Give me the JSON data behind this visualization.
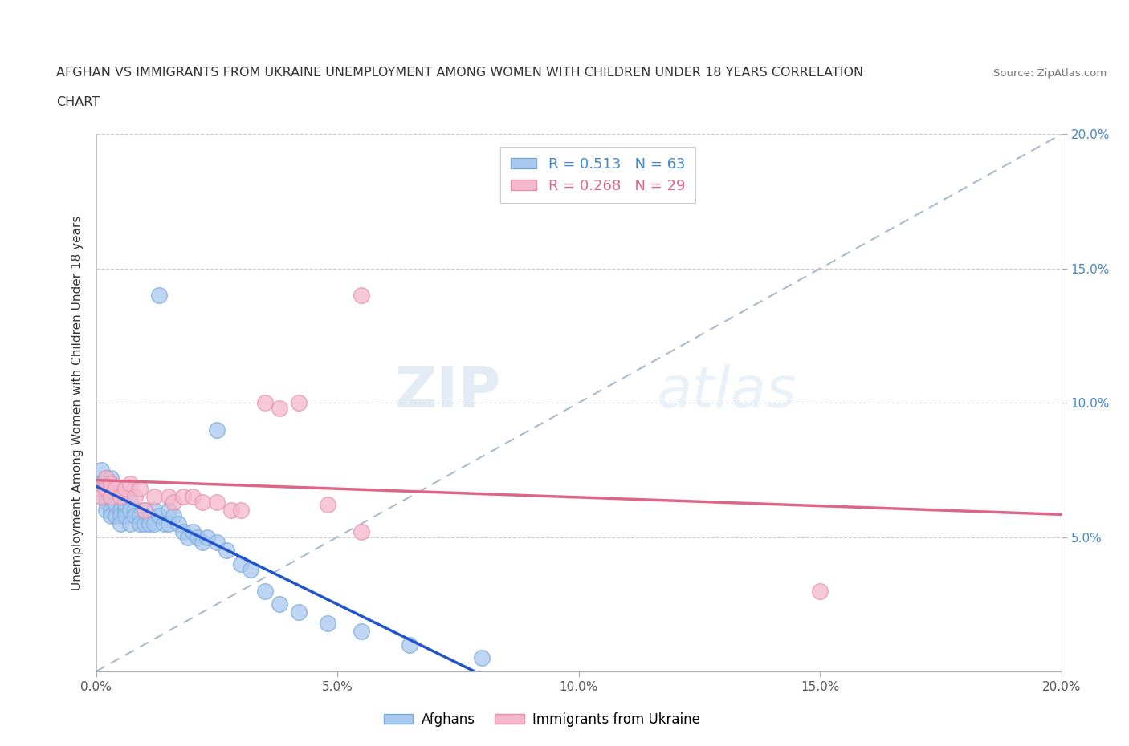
{
  "title_line1": "AFGHAN VS IMMIGRANTS FROM UKRAINE UNEMPLOYMENT AMONG WOMEN WITH CHILDREN UNDER 18 YEARS CORRELATION",
  "title_line2": "CHART",
  "source": "Source: ZipAtlas.com",
  "ylabel": "Unemployment Among Women with Children Under 18 years",
  "xlim": [
    0.0,
    0.2
  ],
  "ylim": [
    0.0,
    0.2
  ],
  "xticks": [
    0.0,
    0.05,
    0.1,
    0.15,
    0.2
  ],
  "yticks": [
    0.05,
    0.1,
    0.15,
    0.2
  ],
  "xticklabels": [
    "0.0%",
    "5.0%",
    "10.0%",
    "15.0%",
    "20.0%"
  ],
  "yticklabels": [
    "5.0%",
    "10.0%",
    "15.0%",
    "20.0%"
  ],
  "afghan_color": "#A8C8F0",
  "afghan_edge": "#7AAAD8",
  "ukraine_color": "#F5B8CC",
  "ukraine_edge": "#E890AA",
  "trend_afghan_color": "#2255CC",
  "trend_ukraine_color": "#DD6688",
  "trend_dash_color": "#AABBCC",
  "R_afghan": 0.513,
  "N_afghan": 63,
  "R_ukraine": 0.268,
  "N_ukraine": 29,
  "legend_label_afghan": "Afghans",
  "legend_label_ukraine": "Immigrants from Ukraine",
  "watermark_zip": "ZIP",
  "watermark_atlas": "atlas",
  "afghan_x": [
    0.001,
    0.001,
    0.001,
    0.002,
    0.002,
    0.002,
    0.002,
    0.002,
    0.002,
    0.003,
    0.003,
    0.003,
    0.003,
    0.003,
    0.004,
    0.004,
    0.004,
    0.004,
    0.005,
    0.005,
    0.005,
    0.005,
    0.006,
    0.006,
    0.006,
    0.007,
    0.007,
    0.007,
    0.008,
    0.008,
    0.009,
    0.009,
    0.01,
    0.01,
    0.011,
    0.011,
    0.012,
    0.012,
    0.013,
    0.014,
    0.015,
    0.015,
    0.016,
    0.017,
    0.018,
    0.019,
    0.02,
    0.021,
    0.022,
    0.023,
    0.025,
    0.027,
    0.03,
    0.032,
    0.035,
    0.038,
    0.042,
    0.048,
    0.055,
    0.065,
    0.08,
    0.013,
    0.025
  ],
  "afghan_y": [
    0.07,
    0.075,
    0.068,
    0.065,
    0.07,
    0.072,
    0.068,
    0.063,
    0.06,
    0.068,
    0.065,
    0.06,
    0.072,
    0.058,
    0.065,
    0.068,
    0.062,
    0.058,
    0.065,
    0.06,
    0.058,
    0.055,
    0.06,
    0.062,
    0.058,
    0.063,
    0.06,
    0.055,
    0.06,
    0.058,
    0.058,
    0.055,
    0.06,
    0.055,
    0.058,
    0.055,
    0.06,
    0.055,
    0.058,
    0.055,
    0.06,
    0.055,
    0.058,
    0.055,
    0.052,
    0.05,
    0.052,
    0.05,
    0.048,
    0.05,
    0.048,
    0.045,
    0.04,
    0.038,
    0.03,
    0.025,
    0.022,
    0.018,
    0.015,
    0.01,
    0.005,
    0.14,
    0.09
  ],
  "ukraine_x": [
    0.001,
    0.001,
    0.002,
    0.002,
    0.003,
    0.003,
    0.004,
    0.005,
    0.006,
    0.007,
    0.008,
    0.009,
    0.01,
    0.012,
    0.015,
    0.016,
    0.018,
    0.02,
    0.022,
    0.025,
    0.028,
    0.03,
    0.035,
    0.038,
    0.042,
    0.048,
    0.055,
    0.15,
    0.055
  ],
  "ukraine_y": [
    0.068,
    0.065,
    0.072,
    0.068,
    0.07,
    0.065,
    0.068,
    0.065,
    0.068,
    0.07,
    0.065,
    0.068,
    0.06,
    0.065,
    0.065,
    0.063,
    0.065,
    0.065,
    0.063,
    0.063,
    0.06,
    0.06,
    0.1,
    0.098,
    0.1,
    0.062,
    0.052,
    0.03,
    0.14
  ]
}
